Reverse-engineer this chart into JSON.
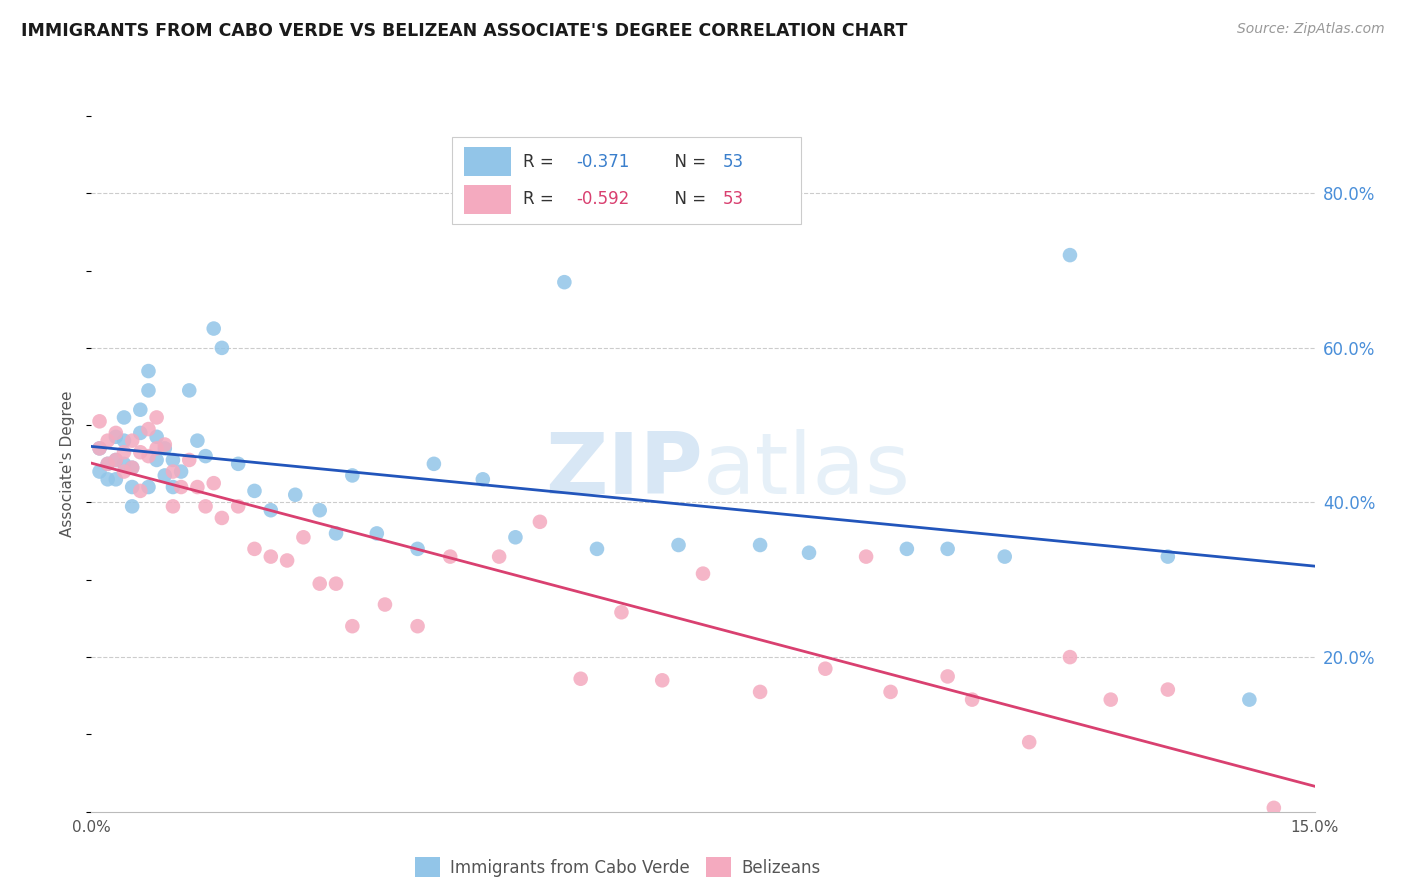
{
  "title": "IMMIGRANTS FROM CABO VERDE VS BELIZEAN ASSOCIATE'S DEGREE CORRELATION CHART",
  "source": "Source: ZipAtlas.com",
  "ylabel": "Associate's Degree",
  "xlim": [
    0.0,
    0.15
  ],
  "ylim": [
    0.0,
    0.9
  ],
  "ytick_vals": [
    0.0,
    0.2,
    0.4,
    0.6,
    0.8
  ],
  "ytick_labels": [
    "",
    "20.0%",
    "40.0%",
    "60.0%",
    "80.0%"
  ],
  "xtick_vals": [
    0.0,
    0.025,
    0.05,
    0.075,
    0.1,
    0.125,
    0.15
  ],
  "xtick_labels": [
    "0.0%",
    "",
    "",
    "",
    "",
    "",
    "15.0%"
  ],
  "legend_label1": "Immigrants from Cabo Verde",
  "legend_label2": "Belizeans",
  "r1": "-0.371",
  "n1": "53",
  "r2": "-0.592",
  "n2": "53",
  "color_blue": "#92C5E8",
  "color_pink": "#F4AABF",
  "line_color_blue": "#2255BB",
  "line_color_pink": "#D94070",
  "watermark_zip": "ZIP",
  "watermark_atlas": "atlas",
  "blue_scatter_x": [
    0.001,
    0.001,
    0.002,
    0.002,
    0.003,
    0.003,
    0.003,
    0.004,
    0.004,
    0.004,
    0.005,
    0.005,
    0.005,
    0.006,
    0.006,
    0.007,
    0.007,
    0.007,
    0.008,
    0.008,
    0.009,
    0.009,
    0.01,
    0.01,
    0.011,
    0.012,
    0.013,
    0.014,
    0.015,
    0.016,
    0.018,
    0.02,
    0.022,
    0.025,
    0.028,
    0.03,
    0.032,
    0.035,
    0.04,
    0.042,
    0.048,
    0.052,
    0.058,
    0.062,
    0.072,
    0.082,
    0.088,
    0.1,
    0.105,
    0.112,
    0.12,
    0.132,
    0.142
  ],
  "blue_scatter_y": [
    0.47,
    0.44,
    0.45,
    0.43,
    0.485,
    0.455,
    0.43,
    0.51,
    0.48,
    0.45,
    0.445,
    0.42,
    0.395,
    0.52,
    0.49,
    0.57,
    0.545,
    0.42,
    0.485,
    0.455,
    0.47,
    0.435,
    0.455,
    0.42,
    0.44,
    0.545,
    0.48,
    0.46,
    0.625,
    0.6,
    0.45,
    0.415,
    0.39,
    0.41,
    0.39,
    0.36,
    0.435,
    0.36,
    0.34,
    0.45,
    0.43,
    0.355,
    0.685,
    0.34,
    0.345,
    0.345,
    0.335,
    0.34,
    0.34,
    0.33,
    0.72,
    0.33,
    0.145
  ],
  "pink_scatter_x": [
    0.001,
    0.001,
    0.002,
    0.002,
    0.003,
    0.003,
    0.004,
    0.004,
    0.005,
    0.005,
    0.006,
    0.006,
    0.007,
    0.007,
    0.008,
    0.008,
    0.009,
    0.01,
    0.01,
    0.011,
    0.012,
    0.013,
    0.014,
    0.015,
    0.016,
    0.018,
    0.02,
    0.022,
    0.024,
    0.026,
    0.028,
    0.03,
    0.032,
    0.036,
    0.04,
    0.044,
    0.05,
    0.055,
    0.06,
    0.065,
    0.07,
    0.075,
    0.082,
    0.09,
    0.095,
    0.098,
    0.105,
    0.108,
    0.115,
    0.12,
    0.125,
    0.132,
    0.145
  ],
  "pink_scatter_y": [
    0.505,
    0.47,
    0.48,
    0.45,
    0.49,
    0.455,
    0.465,
    0.44,
    0.48,
    0.445,
    0.465,
    0.415,
    0.495,
    0.46,
    0.51,
    0.47,
    0.475,
    0.44,
    0.395,
    0.42,
    0.455,
    0.42,
    0.395,
    0.425,
    0.38,
    0.395,
    0.34,
    0.33,
    0.325,
    0.355,
    0.295,
    0.295,
    0.24,
    0.268,
    0.24,
    0.33,
    0.33,
    0.375,
    0.172,
    0.258,
    0.17,
    0.308,
    0.155,
    0.185,
    0.33,
    0.155,
    0.175,
    0.145,
    0.09,
    0.2,
    0.145,
    0.158,
    0.005
  ]
}
